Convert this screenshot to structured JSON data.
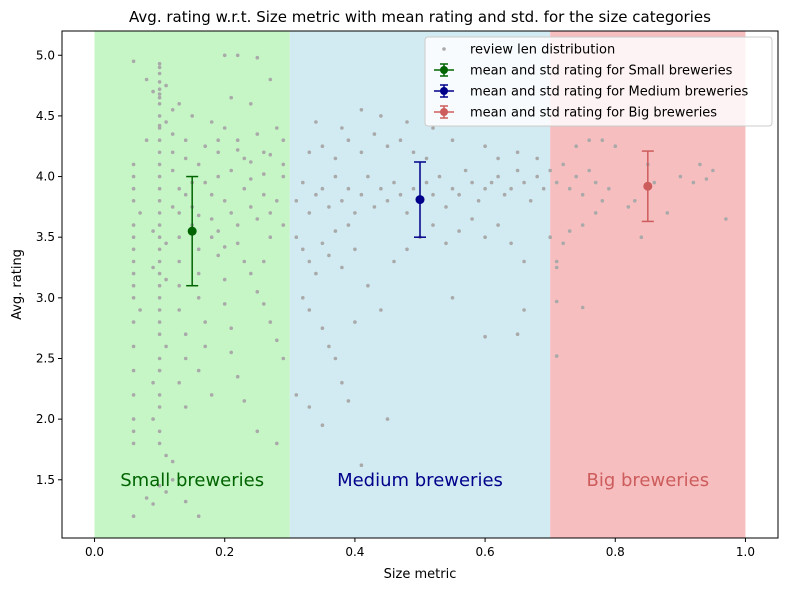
{
  "chart_data": {
    "type": "scatter",
    "title": "Avg. rating w.r.t. Size metric with mean rating and std. for the size categories",
    "xlabel": "Size metric",
    "ylabel": "Avg. rating",
    "xlim": [
      -0.05,
      1.05
    ],
    "ylim": [
      1.02,
      5.2
    ],
    "x_ticks": [
      0.0,
      0.2,
      0.4,
      0.6,
      0.8,
      1.0
    ],
    "x_tick_labels": [
      "0.0",
      "0.2",
      "0.4",
      "0.6",
      "0.8",
      "1.0"
    ],
    "y_ticks": [
      1.5,
      2.0,
      2.5,
      3.0,
      3.5,
      4.0,
      4.5,
      5.0
    ],
    "y_tick_labels": [
      "1.5",
      "2.0",
      "2.5",
      "3.0",
      "3.5",
      "4.0",
      "4.5",
      "5.0"
    ],
    "grid": false,
    "legend_position": "top-right",
    "regions": [
      {
        "label": "Small breweries",
        "x_start": 0.0,
        "x_end": 0.3,
        "color": "#c6f5c6",
        "text_color": "#006400"
      },
      {
        "label": "Medium breweries",
        "x_start": 0.3,
        "x_end": 0.7,
        "color": "#d2eaf1",
        "text_color": "#00008b"
      },
      {
        "label": "Big breweries",
        "x_start": 0.7,
        "x_end": 1.0,
        "color": "#f6bebf",
        "text_color": "#cd5c5c"
      }
    ],
    "region_label_y": 1.5,
    "scatter": {
      "name": "review len distribution",
      "color": "#a9a9a9",
      "points": [
        [
          0.06,
          4.95
        ],
        [
          0.1,
          4.93
        ],
        [
          0.1,
          4.9
        ],
        [
          0.1,
          4.85
        ],
        [
          0.08,
          4.8
        ],
        [
          0.1,
          4.78
        ],
        [
          0.11,
          4.75
        ],
        [
          0.1,
          4.72
        ],
        [
          0.09,
          4.7
        ],
        [
          0.1,
          4.68
        ],
        [
          0.1,
          4.65
        ],
        [
          0.1,
          4.6
        ],
        [
          0.12,
          4.55
        ],
        [
          0.1,
          4.5
        ],
        [
          0.11,
          4.45
        ],
        [
          0.1,
          4.42
        ],
        [
          0.1,
          4.4
        ],
        [
          0.12,
          4.35
        ],
        [
          0.08,
          4.3
        ],
        [
          0.14,
          4.3
        ],
        [
          0.2,
          4.4
        ],
        [
          0.22,
          4.3
        ],
        [
          0.25,
          4.35
        ],
        [
          0.28,
          4.4
        ],
        [
          0.29,
          4.3
        ],
        [
          0.24,
          4.6
        ],
        [
          0.27,
          4.8
        ],
        [
          0.21,
          4.65
        ],
        [
          0.2,
          5.0
        ],
        [
          0.22,
          5.0
        ],
        [
          0.25,
          4.98
        ],
        [
          0.15,
          4.5
        ],
        [
          0.18,
          4.45
        ],
        [
          0.13,
          4.6
        ],
        [
          0.12,
          4.2
        ],
        [
          0.16,
          4.1
        ],
        [
          0.19,
          4.2
        ],
        [
          0.23,
          4.15
        ],
        [
          0.26,
          4.2
        ],
        [
          0.29,
          4.1
        ],
        [
          0.06,
          4.1
        ],
        [
          0.06,
          4.0
        ],
        [
          0.06,
          3.9
        ],
        [
          0.06,
          3.8
        ],
        [
          0.07,
          3.7
        ],
        [
          0.06,
          3.6
        ],
        [
          0.06,
          3.5
        ],
        [
          0.06,
          3.4
        ],
        [
          0.06,
          3.3
        ],
        [
          0.06,
          3.2
        ],
        [
          0.06,
          3.1
        ],
        [
          0.06,
          3.0
        ],
        [
          0.07,
          2.9
        ],
        [
          0.06,
          2.8
        ],
        [
          0.06,
          2.6
        ],
        [
          0.06,
          2.4
        ],
        [
          0.06,
          2.2
        ],
        [
          0.06,
          2.0
        ],
        [
          0.06,
          1.9
        ],
        [
          0.06,
          1.8
        ],
        [
          0.06,
          1.2
        ],
        [
          0.08,
          1.35
        ],
        [
          0.09,
          1.3
        ],
        [
          0.1,
          1.45
        ],
        [
          0.11,
          1.4
        ],
        [
          0.12,
          1.5
        ],
        [
          0.16,
          1.2
        ],
        [
          0.14,
          1.32
        ],
        [
          0.12,
          1.65
        ],
        [
          0.11,
          1.7
        ],
        [
          0.1,
          1.8
        ],
        [
          0.1,
          1.9
        ],
        [
          0.09,
          2.0
        ],
        [
          0.1,
          2.1
        ],
        [
          0.1,
          2.2
        ],
        [
          0.09,
          2.3
        ],
        [
          0.1,
          2.4
        ],
        [
          0.1,
          2.5
        ],
        [
          0.11,
          2.6
        ],
        [
          0.1,
          2.7
        ],
        [
          0.1,
          2.8
        ],
        [
          0.1,
          2.9
        ],
        [
          0.1,
          3.0
        ],
        [
          0.1,
          3.1
        ],
        [
          0.1,
          3.2
        ],
        [
          0.1,
          3.3
        ],
        [
          0.1,
          3.4
        ],
        [
          0.1,
          3.5
        ],
        [
          0.1,
          3.6
        ],
        [
          0.1,
          3.7
        ],
        [
          0.1,
          3.8
        ],
        [
          0.1,
          3.9
        ],
        [
          0.1,
          4.0
        ],
        [
          0.1,
          4.1
        ],
        [
          0.1,
          4.2
        ],
        [
          0.1,
          4.3
        ],
        [
          0.09,
          3.55
        ],
        [
          0.11,
          3.45
        ],
        [
          0.09,
          3.25
        ],
        [
          0.11,
          3.15
        ],
        [
          0.13,
          3.9
        ],
        [
          0.13,
          3.7
        ],
        [
          0.13,
          3.5
        ],
        [
          0.13,
          3.3
        ],
        [
          0.13,
          3.1
        ],
        [
          0.13,
          2.9
        ],
        [
          0.14,
          2.7
        ],
        [
          0.14,
          2.5
        ],
        [
          0.13,
          2.3
        ],
        [
          0.14,
          2.1
        ],
        [
          0.15,
          3.95
        ],
        [
          0.15,
          3.75
        ],
        [
          0.15,
          3.6
        ],
        [
          0.16,
          3.4
        ],
        [
          0.16,
          3.2
        ],
        [
          0.16,
          3.0
        ],
        [
          0.17,
          2.8
        ],
        [
          0.17,
          2.6
        ],
        [
          0.16,
          2.4
        ],
        [
          0.18,
          2.2
        ],
        [
          0.18,
          3.85
        ],
        [
          0.18,
          3.65
        ],
        [
          0.19,
          3.55
        ],
        [
          0.19,
          3.35
        ],
        [
          0.2,
          3.15
        ],
        [
          0.2,
          2.95
        ],
        [
          0.21,
          2.75
        ],
        [
          0.21,
          2.55
        ],
        [
          0.22,
          2.35
        ],
        [
          0.23,
          2.15
        ],
        [
          0.2,
          3.8
        ],
        [
          0.21,
          3.7
        ],
        [
          0.22,
          3.6
        ],
        [
          0.23,
          3.9
        ],
        [
          0.24,
          3.75
        ],
        [
          0.25,
          3.65
        ],
        [
          0.26,
          3.85
        ],
        [
          0.27,
          3.7
        ],
        [
          0.28,
          3.8
        ],
        [
          0.29,
          3.6
        ],
        [
          0.22,
          3.45
        ],
        [
          0.23,
          3.3
        ],
        [
          0.24,
          3.2
        ],
        [
          0.25,
          3.05
        ],
        [
          0.26,
          2.95
        ],
        [
          0.27,
          2.8
        ],
        [
          0.28,
          2.65
        ],
        [
          0.29,
          2.5
        ],
        [
          0.28,
          1.8
        ],
        [
          0.25,
          1.9
        ],
        [
          0.17,
          3.95
        ],
        [
          0.19,
          4.0
        ],
        [
          0.21,
          4.05
        ],
        [
          0.24,
          3.98
        ],
        [
          0.26,
          4.02
        ],
        [
          0.14,
          3.85
        ],
        [
          0.12,
          3.75
        ],
        [
          0.16,
          3.68
        ],
        [
          0.18,
          3.5
        ],
        [
          0.2,
          3.42
        ],
        [
          0.12,
          4.05
        ],
        [
          0.14,
          4.15
        ],
        [
          0.17,
          4.25
        ],
        [
          0.19,
          4.3
        ],
        [
          0.22,
          4.22
        ],
        [
          0.24,
          4.12
        ],
        [
          0.27,
          4.18
        ],
        [
          0.29,
          4.0
        ],
        [
          0.27,
          3.5
        ],
        [
          0.26,
          3.3
        ],
        [
          0.31,
          3.8
        ],
        [
          0.32,
          3.95
        ],
        [
          0.33,
          3.7
        ],
        [
          0.34,
          3.85
        ],
        [
          0.35,
          3.9
        ],
        [
          0.36,
          3.75
        ],
        [
          0.37,
          4.0
        ],
        [
          0.38,
          3.8
        ],
        [
          0.39,
          3.9
        ],
        [
          0.4,
          3.7
        ],
        [
          0.41,
          3.85
        ],
        [
          0.42,
          4.0
        ],
        [
          0.43,
          3.75
        ],
        [
          0.44,
          3.9
        ],
        [
          0.45,
          3.8
        ],
        [
          0.46,
          3.95
        ],
        [
          0.47,
          3.85
        ],
        [
          0.48,
          3.7
        ],
        [
          0.49,
          3.9
        ],
        [
          0.5,
          3.8
        ],
        [
          0.51,
          3.95
        ],
        [
          0.52,
          3.85
        ],
        [
          0.53,
          4.0
        ],
        [
          0.54,
          3.75
        ],
        [
          0.55,
          3.9
        ],
        [
          0.56,
          3.85
        ],
        [
          0.57,
          4.05
        ],
        [
          0.58,
          3.95
        ],
        [
          0.59,
          3.8
        ],
        [
          0.6,
          3.9
        ],
        [
          0.61,
          3.95
        ],
        [
          0.62,
          4.0
        ],
        [
          0.63,
          3.85
        ],
        [
          0.64,
          3.9
        ],
        [
          0.65,
          4.05
        ],
        [
          0.66,
          3.95
        ],
        [
          0.67,
          3.8
        ],
        [
          0.68,
          4.0
        ],
        [
          0.69,
          3.9
        ],
        [
          0.62,
          4.15
        ],
        [
          0.31,
          3.5
        ],
        [
          0.32,
          3.4
        ],
        [
          0.33,
          3.3
        ],
        [
          0.34,
          3.2
        ],
        [
          0.35,
          3.45
        ],
        [
          0.36,
          3.35
        ],
        [
          0.37,
          3.55
        ],
        [
          0.38,
          3.25
        ],
        [
          0.39,
          3.6
        ],
        [
          0.4,
          3.4
        ],
        [
          0.32,
          3.0
        ],
        [
          0.33,
          2.9
        ],
        [
          0.35,
          2.75
        ],
        [
          0.36,
          2.6
        ],
        [
          0.37,
          2.5
        ],
        [
          0.38,
          2.3
        ],
        [
          0.4,
          2.8
        ],
        [
          0.42,
          3.1
        ],
        [
          0.44,
          2.9
        ],
        [
          0.46,
          3.3
        ],
        [
          0.48,
          3.4
        ],
        [
          0.5,
          3.5
        ],
        [
          0.52,
          3.6
        ],
        [
          0.54,
          3.45
        ],
        [
          0.56,
          3.55
        ],
        [
          0.58,
          3.65
        ],
        [
          0.6,
          3.5
        ],
        [
          0.62,
          3.6
        ],
        [
          0.64,
          3.45
        ],
        [
          0.66,
          3.3
        ],
        [
          0.33,
          4.2
        ],
        [
          0.35,
          4.25
        ],
        [
          0.37,
          4.15
        ],
        [
          0.39,
          4.3
        ],
        [
          0.41,
          4.2
        ],
        [
          0.43,
          4.35
        ],
        [
          0.45,
          4.25
        ],
        [
          0.47,
          4.3
        ],
        [
          0.49,
          4.2
        ],
        [
          0.51,
          4.15
        ],
        [
          0.34,
          4.45
        ],
        [
          0.38,
          4.4
        ],
        [
          0.41,
          4.55
        ],
        [
          0.44,
          4.5
        ],
        [
          0.48,
          4.45
        ],
        [
          0.52,
          4.4
        ],
        [
          0.55,
          4.3
        ],
        [
          0.6,
          4.25
        ],
        [
          0.65,
          4.2
        ],
        [
          0.68,
          4.15
        ],
        [
          0.31,
          2.2
        ],
        [
          0.33,
          2.1
        ],
        [
          0.35,
          1.95
        ],
        [
          0.39,
          2.15
        ],
        [
          0.41,
          1.62
        ],
        [
          0.45,
          2.0
        ],
        [
          0.55,
          3.0
        ],
        [
          0.6,
          2.68
        ],
        [
          0.65,
          2.7
        ],
        [
          0.66,
          2.9
        ],
        [
          0.7,
          4.05
        ],
        [
          0.71,
          3.95
        ],
        [
          0.72,
          4.1
        ],
        [
          0.73,
          3.9
        ],
        [
          0.74,
          4.0
        ],
        [
          0.75,
          3.85
        ],
        [
          0.76,
          4.05
        ],
        [
          0.77,
          3.95
        ],
        [
          0.78,
          3.8
        ],
        [
          0.79,
          3.9
        ],
        [
          0.7,
          3.5
        ],
        [
          0.71,
          3.3
        ],
        [
          0.72,
          3.45
        ],
        [
          0.73,
          3.55
        ],
        [
          0.75,
          3.6
        ],
        [
          0.77,
          3.7
        ],
        [
          0.78,
          4.3
        ],
        [
          0.8,
          4.25
        ],
        [
          0.82,
          3.75
        ],
        [
          0.83,
          3.8
        ],
        [
          0.84,
          3.5
        ],
        [
          0.85,
          4.1
        ],
        [
          0.86,
          3.95
        ],
        [
          0.88,
          3.7
        ],
        [
          0.9,
          4.0
        ],
        [
          0.92,
          3.95
        ],
        [
          0.93,
          4.1
        ],
        [
          0.94,
          3.98
        ],
        [
          0.95,
          4.05
        ],
        [
          0.97,
          3.65
        ],
        [
          0.71,
          3.25
        ],
        [
          0.71,
          2.97
        ],
        [
          0.71,
          2.52
        ],
        [
          0.75,
          2.92
        ],
        [
          0.76,
          4.3
        ],
        [
          0.74,
          4.25
        ]
      ]
    },
    "error_series": [
      {
        "name": "mean and std rating for Small breweries",
        "x": 0.15,
        "mean": 3.55,
        "std": 0.45,
        "color": "#006400"
      },
      {
        "name": "mean and std rating for Medium breweries",
        "x": 0.5,
        "mean": 3.81,
        "std": 0.31,
        "color": "#00008b"
      },
      {
        "name": "mean and std rating for Big breweries",
        "x": 0.85,
        "mean": 3.92,
        "std": 0.29,
        "color": "#cd5c5c"
      }
    ]
  }
}
